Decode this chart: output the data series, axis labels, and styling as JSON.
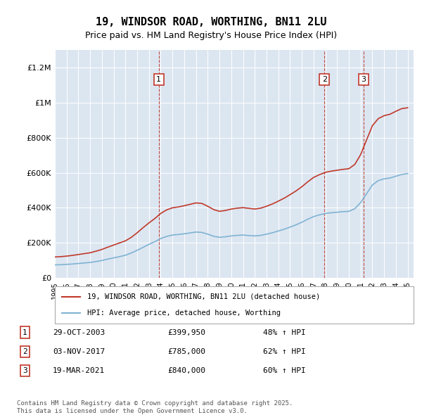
{
  "title": "19, WINDSOR ROAD, WORTHING, BN11 2LU",
  "subtitle": "Price paid vs. HM Land Registry's House Price Index (HPI)",
  "title_fontsize": 11,
  "subtitle_fontsize": 9,
  "ylim": [
    0,
    1300000
  ],
  "yticks": [
    0,
    200000,
    400000,
    600000,
    800000,
    1000000,
    1200000
  ],
  "ytick_labels": [
    "£0",
    "£200K",
    "£400K",
    "£600K",
    "£800K",
    "£1M",
    "£1.2M"
  ],
  "background_color": "#dce6f1",
  "plot_bg_color": "#dce6f1",
  "red_line_color": "#c0392b",
  "blue_line_color": "#7fb3d3",
  "sale_dates": [
    "2003-10-29",
    "2017-11-03",
    "2021-03-19"
  ],
  "sale_prices": [
    399950,
    785000,
    840000
  ],
  "sale_labels": [
    "1",
    "2",
    "3"
  ],
  "sale_info": [
    {
      "label": "1",
      "date": "29-OCT-2003",
      "price": "£399,950",
      "hpi": "48% ↑ HPI"
    },
    {
      "label": "2",
      "date": "03-NOV-2017",
      "price": "£785,000",
      "hpi": "62% ↑ HPI"
    },
    {
      "label": "3",
      "date": "19-MAR-2021",
      "price": "£840,000",
      "hpi": "60% ↑ HPI"
    }
  ],
  "legend_entries": [
    "19, WINDSOR ROAD, WORTHING, BN11 2LU (detached house)",
    "HPI: Average price, detached house, Worthing"
  ],
  "footer_text": "Contains HM Land Registry data © Crown copyright and database right 2025.\nThis data is licensed under the Open Government Licence v3.0.",
  "hpi_years": [
    1995,
    1995.5,
    1996,
    1996.5,
    1997,
    1997.5,
    1998,
    1998.5,
    1999,
    1999.5,
    2000,
    2000.5,
    2001,
    2001.5,
    2002,
    2002.5,
    2003,
    2003.5,
    2004,
    2004.5,
    2005,
    2005.5,
    2006,
    2006.5,
    2007,
    2007.5,
    2008,
    2008.5,
    2009,
    2009.5,
    2010,
    2010.5,
    2011,
    2011.5,
    2012,
    2012.5,
    2013,
    2013.5,
    2014,
    2014.5,
    2015,
    2015.5,
    2016,
    2016.5,
    2017,
    2017.5,
    2018,
    2018.5,
    2019,
    2019.5,
    2020,
    2020.5,
    2021,
    2021.5,
    2022,
    2022.5,
    2023,
    2023.5,
    2024,
    2024.5,
    2025
  ],
  "hpi_values": [
    75000,
    76000,
    78000,
    80000,
    83000,
    86000,
    89000,
    94000,
    100000,
    108000,
    115000,
    122000,
    130000,
    143000,
    158000,
    175000,
    192000,
    207000,
    225000,
    237000,
    245000,
    248000,
    252000,
    257000,
    262000,
    260000,
    250000,
    238000,
    232000,
    235000,
    240000,
    243000,
    245000,
    242000,
    240000,
    243000,
    250000,
    258000,
    268000,
    278000,
    290000,
    303000,
    318000,
    335000,
    350000,
    360000,
    368000,
    372000,
    375000,
    378000,
    380000,
    395000,
    430000,
    480000,
    530000,
    555000,
    565000,
    570000,
    580000,
    590000,
    595000
  ],
  "red_years": [
    1995,
    1995.5,
    1996,
    1996.5,
    1997,
    1997.5,
    1998,
    1998.5,
    1999,
    1999.5,
    2000,
    2000.5,
    2001,
    2001.5,
    2002,
    2002.5,
    2003,
    2003.5,
    2004,
    2004.5,
    2005,
    2005.5,
    2006,
    2006.5,
    2007,
    2007.5,
    2008,
    2008.5,
    2009,
    2009.5,
    2010,
    2010.5,
    2011,
    2011.5,
    2012,
    2012.5,
    2013,
    2013.5,
    2014,
    2014.5,
    2015,
    2015.5,
    2016,
    2016.5,
    2017,
    2017.5,
    2018,
    2018.5,
    2019,
    2019.5,
    2020,
    2020.5,
    2021,
    2021.5,
    2022,
    2022.5,
    2023,
    2023.5,
    2024,
    2024.5,
    2025
  ],
  "red_values": [
    120000,
    122000,
    125000,
    129000,
    134000,
    139000,
    144000,
    153000,
    163000,
    176000,
    188000,
    200000,
    212000,
    232000,
    258000,
    287000,
    314000,
    339000,
    368000,
    388000,
    400000,
    405000,
    412000,
    420000,
    428000,
    425000,
    409000,
    390000,
    380000,
    385000,
    393000,
    398000,
    401000,
    397000,
    393000,
    398000,
    409000,
    422000,
    438000,
    455000,
    475000,
    496000,
    520000,
    548000,
    573000,
    589000,
    602000,
    609000,
    614000,
    619000,
    623000,
    647000,
    703000,
    786000,
    868000,
    908000,
    925000,
    933000,
    950000,
    965000,
    970000
  ]
}
